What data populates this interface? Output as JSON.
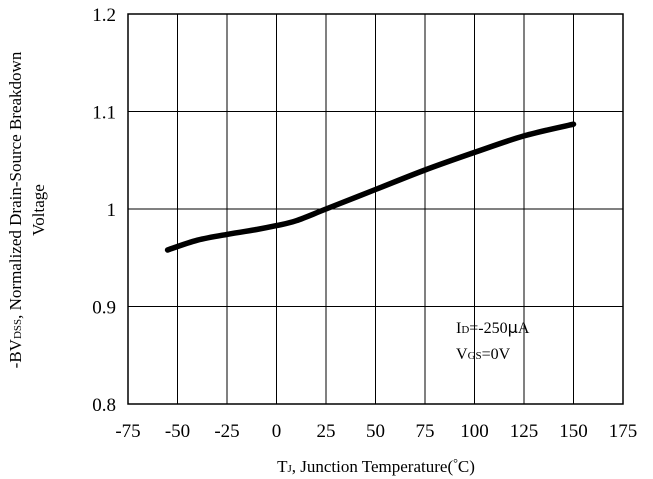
{
  "chart_data": {
    "type": "line",
    "xlabel": "TJ, Junction Temperature(°C)",
    "ylabel_line1": "-BVDSS, Normalized Drain-Source Breakdown",
    "ylabel_line2": "Voltage",
    "xlim": [
      -75,
      175
    ],
    "ylim": [
      0.8,
      1.2
    ],
    "x_ticks": [
      -75,
      -50,
      -25,
      0,
      25,
      50,
      75,
      100,
      125,
      150,
      175
    ],
    "y_ticks": [
      0.8,
      0.9,
      1.0,
      1.1,
      1.2
    ],
    "x_tick_labels": [
      "-75",
      "-50",
      "-25",
      "0",
      "25",
      "50",
      "75",
      "100",
      "125",
      "150",
      "175"
    ],
    "y_tick_labels": [
      "0.8",
      "0.9",
      "1",
      "1.1",
      "1.2"
    ],
    "grid": true,
    "series": [
      {
        "x": [
          -55,
          -40,
          -25,
          -10,
          0,
          10,
          25,
          50,
          75,
          100,
          125,
          150
        ],
        "y": [
          0.958,
          0.968,
          0.974,
          0.979,
          0.983,
          0.988,
          1.0,
          1.02,
          1.04,
          1.058,
          1.075,
          1.087
        ],
        "color": "#000000"
      }
    ],
    "annotations": [
      "ID=-250μA",
      "VGS=0V"
    ]
  }
}
